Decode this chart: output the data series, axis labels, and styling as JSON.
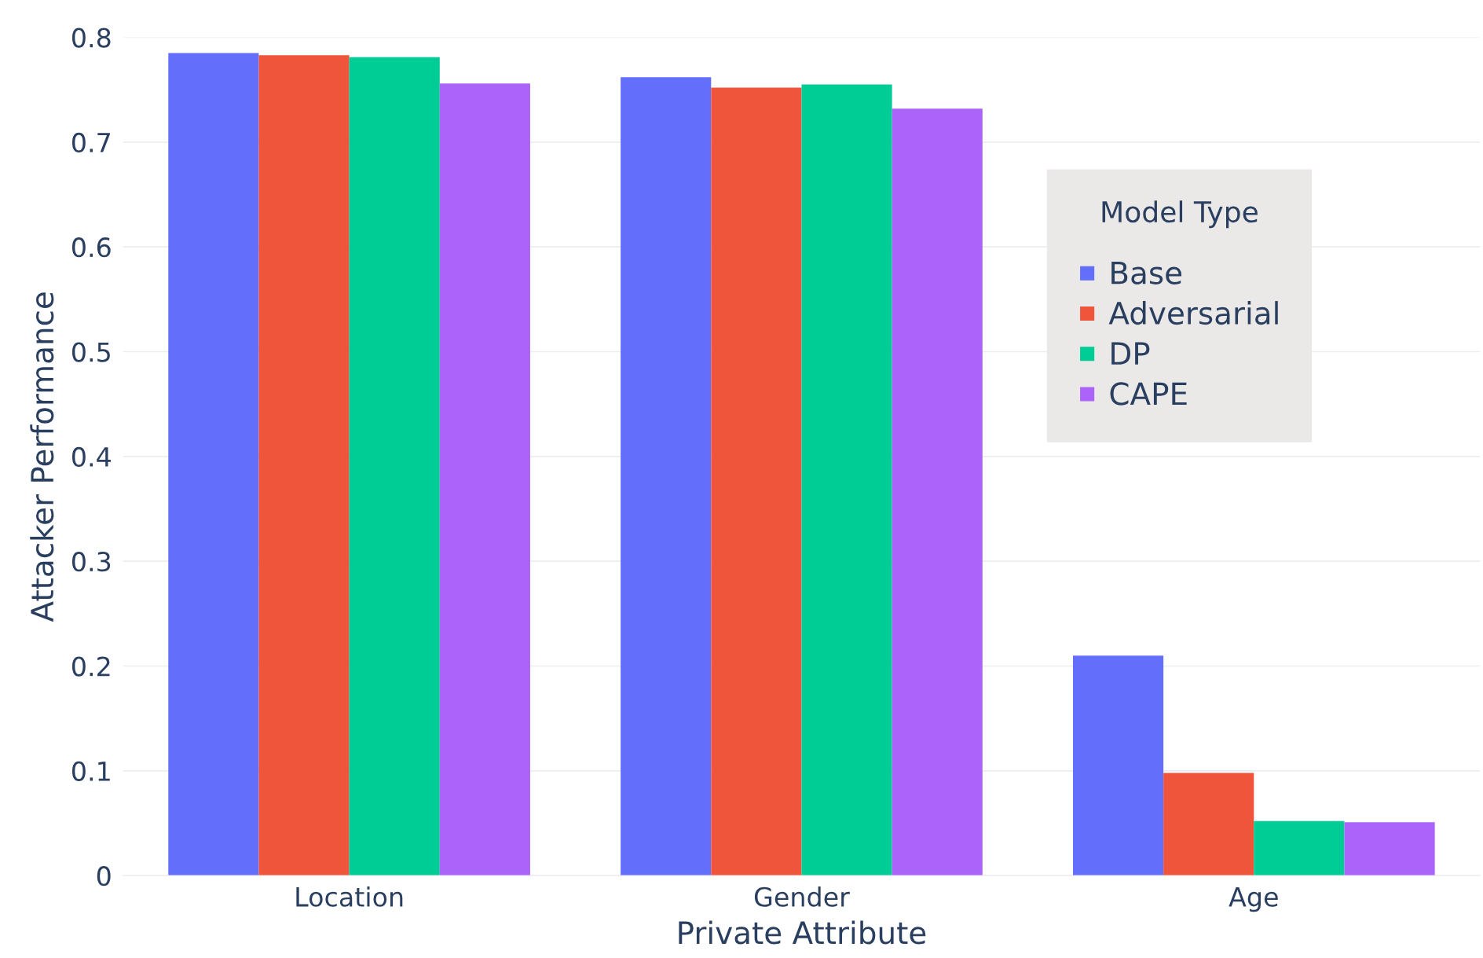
{
  "chart_data": {
    "type": "bar",
    "xlabel": "Private Attribute",
    "ylabel": "Attacker Performance",
    "legend_title": "Model Type",
    "categories": [
      "Location",
      "Gender",
      "Age"
    ],
    "series": [
      {
        "name": "Base",
        "color": "#636efa",
        "values": [
          0.785,
          0.762,
          0.21
        ]
      },
      {
        "name": "Adversarial",
        "color": "#ef553b",
        "values": [
          0.783,
          0.752,
          0.098
        ]
      },
      {
        "name": "DP",
        "color": "#00cc96",
        "values": [
          0.781,
          0.755,
          0.052
        ]
      },
      {
        "name": "CAPE",
        "color": "#ab63fa",
        "values": [
          0.756,
          0.732,
          0.051
        ]
      }
    ],
    "ylim": [
      0,
      0.8
    ],
    "yticks": [
      0,
      0.1,
      0.2,
      0.3,
      0.4,
      0.5,
      0.6,
      0.7,
      0.8
    ],
    "grid": "y",
    "legend": "top right"
  }
}
